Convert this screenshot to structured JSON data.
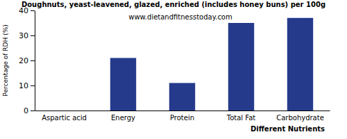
{
  "chart_data": {
    "type": "bar",
    "title": "Doughnuts, yeast-leavened, glazed, enriched (includes honey buns) per 100g",
    "subtitle": "www.dietandfitnesstoday.com",
    "x_label": "Different Nutrients",
    "y_label": "Percentage of RDH (%)",
    "categories": [
      "Aspartic acid",
      "Energy",
      "Protein",
      "Total Fat",
      "Carbohydrate"
    ],
    "values": [
      0,
      21,
      11,
      35,
      37
    ],
    "color": "#263a8c",
    "ylim": [
      0,
      40
    ],
    "yticks": [
      0,
      10,
      20,
      30,
      40
    ],
    "grid": false
  }
}
